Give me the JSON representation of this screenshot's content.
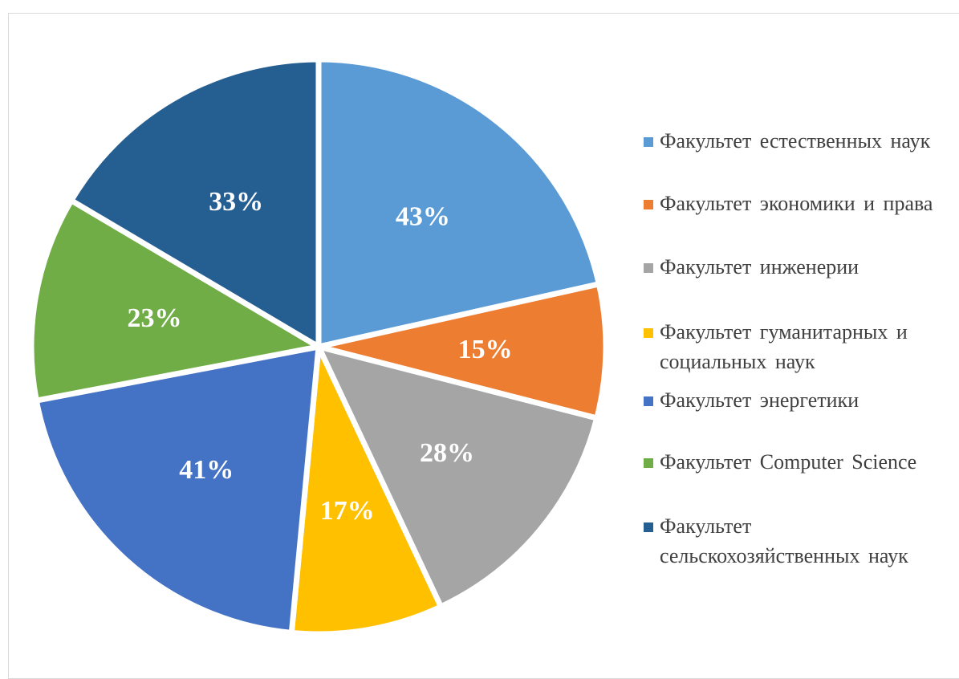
{
  "chart_data": {
    "type": "pie",
    "title": "",
    "slices": [
      {
        "label": "Факультет естественных наук",
        "value": 43,
        "display": "43%",
        "color": "#5B9BD5"
      },
      {
        "label": "Факультет экономики и права",
        "value": 15,
        "display": "15%",
        "color": "#ED7D31"
      },
      {
        "label": "Факультет инженерии",
        "value": 28,
        "display": "28%",
        "color": "#A5A5A5"
      },
      {
        "label": "Факультет гуманитарных и социальных наук",
        "value": 17,
        "display": "17%",
        "color": "#FFC000"
      },
      {
        "label": "Факультет энергетики",
        "value": 41,
        "display": "41%",
        "color": "#4472C4"
      },
      {
        "label": "Факультет Computer Science",
        "value": 23,
        "display": "23%",
        "color": "#70AD47"
      },
      {
        "label": "Факультет сельскохозяйственных наук",
        "value": 33,
        "display": "33%",
        "color": "#255E91"
      }
    ],
    "legend_position": "right"
  }
}
